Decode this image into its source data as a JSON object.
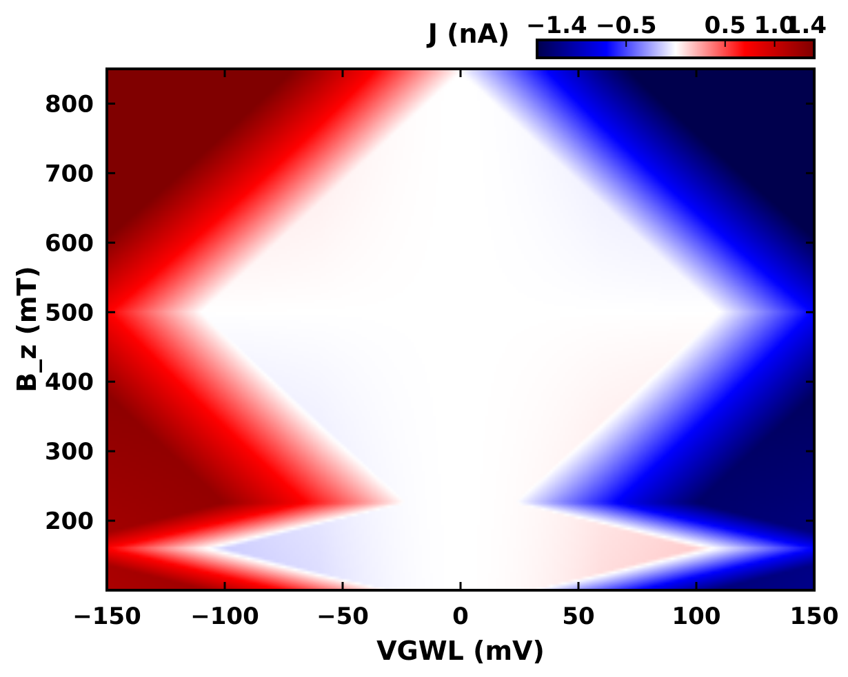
{
  "chart_data": {
    "type": "heatmap",
    "title": "",
    "xlabel": "VGWL (mV)",
    "ylabel": "B_z (mT)",
    "xlim": [
      -150,
      150
    ],
    "ylim": [
      100,
      850
    ],
    "x_ticks": [
      -150,
      -100,
      -50,
      0,
      50,
      100,
      150
    ],
    "x_tick_labels": [
      "−150",
      "−100",
      "−50",
      "0",
      "50",
      "100",
      "150"
    ],
    "y_ticks": [
      200,
      300,
      400,
      500,
      600,
      700,
      800
    ],
    "y_tick_labels": [
      "200",
      "300",
      "400",
      "500",
      "600",
      "700",
      "800"
    ],
    "colorbar": {
      "label": "J (nA)",
      "range": [
        -1.4,
        1.4
      ],
      "ticks": [
        -1.4,
        -0.5,
        0.5,
        1.0,
        1.4
      ],
      "tick_labels": [
        "−1.4",
        "−0.5",
        "0.5",
        "1.0",
        "1.4"
      ],
      "colormap": "seismic",
      "stops": [
        {
          "value": -1.4,
          "color": "#00004d"
        },
        {
          "value": -0.7,
          "color": "#0000ff"
        },
        {
          "value": 0.0,
          "color": "#ffffff"
        },
        {
          "value": 0.7,
          "color": "#ff0000"
        },
        {
          "value": 1.4,
          "color": "#800000"
        }
      ]
    },
    "model": {
      "description_free": true,
      "diamonds": [
        {
          "y_center": 500,
          "half_height": 345,
          "half_width_v": 110
        },
        {
          "y_center": 160,
          "half_height": 85,
          "half_width_v": 100
        }
      ]
    }
  }
}
